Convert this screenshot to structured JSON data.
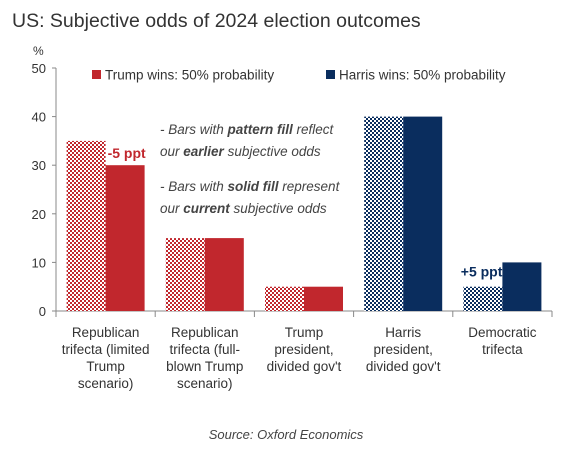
{
  "chart_data": {
    "type": "bar",
    "title": "US: Subjective odds of 2024 election outcomes",
    "ylabel": "%",
    "ylim": [
      0,
      50
    ],
    "yticks": [
      0,
      10,
      20,
      30,
      40,
      50
    ],
    "grid": false,
    "legend_position": "top",
    "categories": [
      [
        "Republican",
        "trifecta (limited",
        "Trump",
        "scenario)"
      ],
      [
        "Republican",
        "trifecta (full-",
        "blown Trump",
        "scenario)"
      ],
      [
        "Trump",
        "president,",
        "divided gov't"
      ],
      [
        "Harris",
        "president,",
        "divided gov't"
      ],
      [
        "Democratic",
        "trifecta"
      ]
    ],
    "series": [
      {
        "fill": "pattern",
        "values": [
          35,
          15,
          5,
          40,
          5
        ]
      },
      {
        "fill": "solid",
        "values": [
          30,
          15,
          5,
          40,
          10
        ]
      }
    ],
    "bar_colors": [
      "#c1272d",
      "#c1272d",
      "#c1272d",
      "#0a2d5e",
      "#0a2d5e"
    ],
    "legend": [
      {
        "label": "Trump wins: 50% probability",
        "color": "#c1272d"
      },
      {
        "label": "Harris wins: 50% probability",
        "color": "#0a2d5e"
      }
    ],
    "data_labels": [
      {
        "category_index": 0,
        "text": "-5 ppt",
        "color": "#c1272d"
      },
      {
        "category_index": 4,
        "text": "+5 ppt",
        "color": "#0a2d5e"
      }
    ],
    "annotations": [
      [
        {
          "text": "- Bars with ",
          "style": "italic"
        },
        {
          "text": "pattern fill",
          "style": "bold-italic"
        },
        {
          "text": " reflect",
          "style": "italic"
        }
      ],
      [
        {
          "text": "our ",
          "style": "italic"
        },
        {
          "text": "earlier",
          "style": "bold-italic"
        },
        {
          "text": " subjective odds",
          "style": "italic"
        }
      ],
      [
        {
          "text": "- Bars with ",
          "style": "italic"
        },
        {
          "text": "solid fill",
          "style": "bold-italic"
        },
        {
          "text": " represent",
          "style": "italic"
        }
      ],
      [
        {
          "text": "our ",
          "style": "italic"
        },
        {
          "text": "current",
          "style": "bold-italic"
        },
        {
          "text": " subjective odds",
          "style": "italic"
        }
      ]
    ],
    "source": "Source: Oxford Economics"
  }
}
